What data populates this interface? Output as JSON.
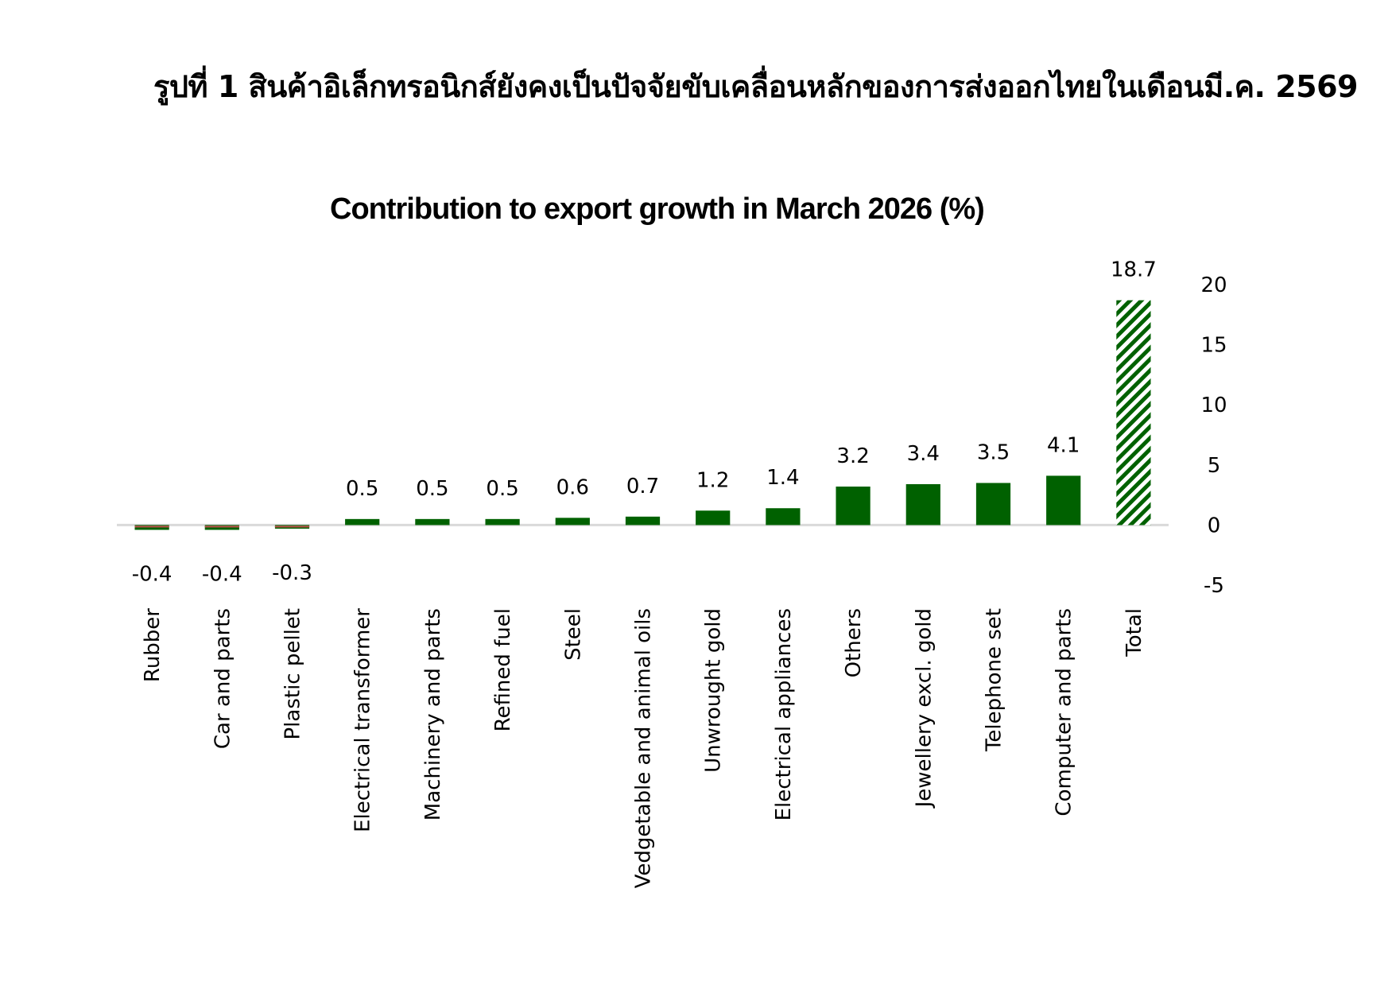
{
  "figure_title": "รูปที่ 1 สินค้าอิเล็กทรอนิกส์ยังคงเป็นปัจจัยขับเคลื่อนหลักของการส่งออกไทยในเดือนมี.ค. 2569",
  "chart_data": {
    "type": "bar",
    "title": "Contribution to export growth in March 2026 (%)",
    "xlabel": "",
    "ylabel": "",
    "categories": [
      "Rubber",
      "Car and parts",
      "Plastic pellet",
      "Electrical transformer",
      "Machinery and parts",
      "Refined fuel",
      "Steel",
      "Vedgetable and animal oils",
      "Unwrought gold",
      "Electrical appliances",
      "Others",
      "Jewellery excl. gold",
      "Telephone set",
      "Computer and parts",
      "Total"
    ],
    "values": [
      -0.4,
      -0.4,
      -0.3,
      0.5,
      0.5,
      0.5,
      0.6,
      0.7,
      1.2,
      1.4,
      3.2,
      3.4,
      3.5,
      4.1,
      18.7
    ],
    "data_labels": [
      "-0.4",
      "-0.4",
      "-0.3",
      "0.5",
      "0.5",
      "0.5",
      "0.6",
      "0.7",
      "1.2",
      "1.4",
      "3.2",
      "3.4",
      "3.5",
      "4.1",
      "18.7"
    ],
    "ylim": [
      -5,
      20
    ],
    "yticks": [
      -5,
      0,
      5,
      10,
      15,
      20
    ],
    "ytick_labels": [
      "-5",
      "0",
      "5",
      "10",
      "15",
      "20"
    ],
    "y_axis_side": "right",
    "grid": false,
    "legend": "none",
    "highlight_category": "Total",
    "highlight_style": "hatched",
    "colors": {
      "bar": "#006100",
      "negative_fill": "#c0504d",
      "zero_line": "#d9d9d9",
      "hatch_light": "#ffffff"
    }
  }
}
